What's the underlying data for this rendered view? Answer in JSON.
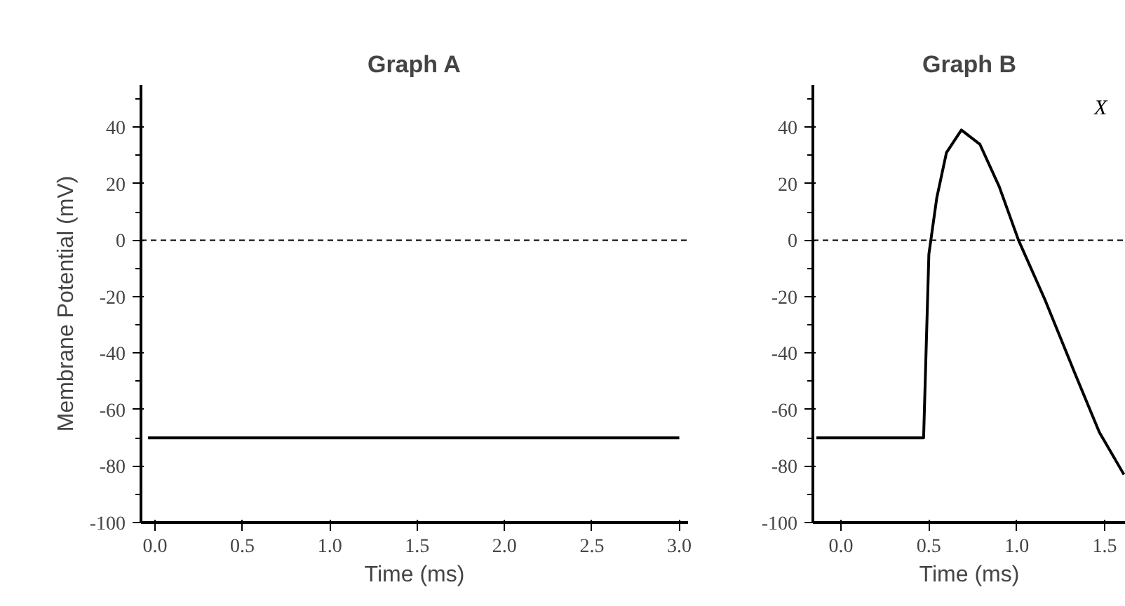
{
  "chart_data": [
    {
      "type": "line",
      "title": "Graph A",
      "xlabel": "Time (ms)",
      "ylabel": "Membrane Potential (mV)",
      "xlim": [
        -0.08,
        3.05
      ],
      "ylim": [
        -100,
        55
      ],
      "xticks": [
        {
          "value": 0,
          "label": "0.0"
        },
        {
          "value": 0.5,
          "label": "0.5"
        },
        {
          "value": 1,
          "label": "1.0"
        },
        {
          "value": 1.5,
          "label": "1.5"
        },
        {
          "value": 2,
          "label": "2.0"
        },
        {
          "value": 2.5,
          "label": "2.5"
        },
        {
          "value": 3,
          "label": "3.0"
        }
      ],
      "yticks": [
        -100,
        -80,
        -60,
        -40,
        -20,
        0,
        20,
        40
      ],
      "grid": false,
      "marker": "none",
      "line_style": "solid",
      "series": [
        {
          "color": "#000000",
          "x": [
            -0.04,
            3.0
          ],
          "values": [
            -70,
            -70
          ]
        }
      ],
      "ref_lines": [
        {
          "axis": "y",
          "value": 0,
          "line_style": "dashed",
          "color": "#000000"
        }
      ]
    },
    {
      "type": "line",
      "title": "Graph B",
      "xlabel": "Time (ms)",
      "xlim": [
        -0.16,
        1.62
      ],
      "ylim": [
        -100,
        55
      ],
      "xticks": [
        {
          "value": 0,
          "label": "0.0"
        },
        {
          "value": 0.5,
          "label": "0.5"
        },
        {
          "value": 1,
          "label": "1.0"
        },
        {
          "value": 1.5,
          "label": "1.5"
        }
      ],
      "yticks": [
        -100,
        -80,
        -60,
        -40,
        -20,
        0,
        20,
        40
      ],
      "grid": false,
      "marker": "none",
      "line_style": "solid",
      "series": [
        {
          "color": "#000000",
          "x": [
            -0.14,
            0.47,
            0.5,
            0.545,
            0.6,
            0.685,
            0.79,
            0.9,
            1.01,
            1.16,
            1.33,
            1.47,
            1.61
          ],
          "values": [
            -70,
            -70,
            -5,
            15,
            31,
            39,
            34,
            19,
            0,
            -21,
            -47,
            -68,
            -83
          ]
        }
      ],
      "ref_lines": [
        {
          "axis": "y",
          "value": 0,
          "line_style": "dashed",
          "color": "#000000"
        }
      ],
      "annotations": [
        "X"
      ]
    }
  ]
}
